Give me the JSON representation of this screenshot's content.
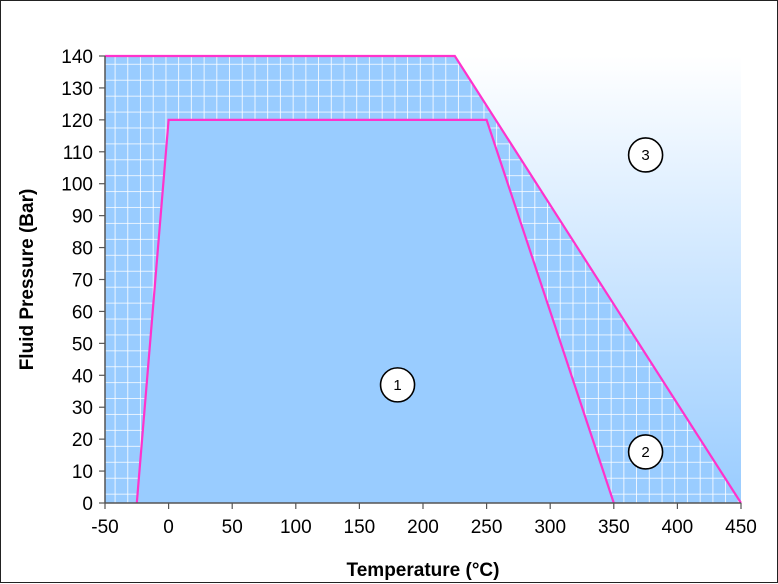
{
  "chart_data": {
    "type": "area",
    "title": "",
    "xlabel": "Temperature (°C)",
    "ylabel": "Fluid Pressure (Bar)",
    "xlim": [
      -50,
      450
    ],
    "ylim": [
      0,
      140
    ],
    "xticks": [
      -50,
      0,
      50,
      100,
      150,
      200,
      250,
      300,
      350,
      400,
      450
    ],
    "yticks": [
      0,
      10,
      20,
      30,
      40,
      50,
      60,
      70,
      80,
      90,
      100,
      110,
      120,
      130,
      140
    ],
    "grid": "fine white grid inside region 2",
    "regions": [
      {
        "label": "1",
        "fill": "solid light blue",
        "boundary": [
          [
            -25,
            0
          ],
          [
            0,
            120
          ],
          [
            250,
            120
          ],
          [
            350,
            0
          ]
        ],
        "label_at": [
          180,
          37
        ]
      },
      {
        "label": "2",
        "fill": "light blue with white grid",
        "boundary": [
          [
            -50,
            0
          ],
          [
            -50,
            140
          ],
          [
            225,
            140
          ],
          [
            450,
            0
          ]
        ],
        "label_at": [
          375,
          16
        ]
      },
      {
        "label": "3",
        "fill": "white to light blue gradient",
        "boundary": [
          [
            225,
            140
          ],
          [
            450,
            140
          ],
          [
            450,
            0
          ]
        ],
        "label_at": [
          375,
          109
        ]
      }
    ],
    "outlines": [
      {
        "name": "inner",
        "points": [
          [
            -25,
            0
          ],
          [
            0,
            120
          ],
          [
            250,
            120
          ],
          [
            350,
            0
          ]
        ]
      },
      {
        "name": "outer",
        "points": [
          [
            -50,
            140
          ],
          [
            225,
            140
          ],
          [
            450,
            0
          ]
        ]
      }
    ]
  },
  "colors": {
    "fill_blue": "#99ccff",
    "grid_white": "#ffffff",
    "boundary_magenta": "#ff33cc",
    "axis_line": "#555555",
    "frame": "#222222"
  }
}
